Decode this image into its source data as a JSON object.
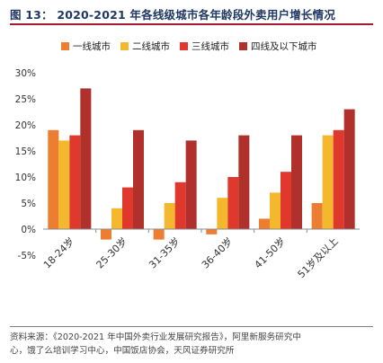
{
  "figure": {
    "label": "图 13：",
    "title": "2020-2021 年各线级城市各年龄段外卖用户增长情况"
  },
  "source": {
    "line1": "资料来源：《2020-2021 年中国外卖行业发展研究报告》，阿里新服务研究中",
    "line2": "心，饿了么培训学习中心，中国饭店协会，天风证券研究所"
  },
  "chart_data": {
    "type": "bar",
    "categories": [
      "18-24岁",
      "25-30岁",
      "31-35岁",
      "36-40岁",
      "41-50岁",
      "51岁及以上"
    ],
    "series": [
      {
        "name": "一线城市",
        "color": "#ed7d31",
        "values": [
          19,
          -2,
          -2,
          -1,
          2,
          5
        ]
      },
      {
        "name": "二线城市",
        "color": "#f4b82e",
        "values": [
          17,
          4,
          5,
          6,
          7,
          18
        ]
      },
      {
        "name": "三线城市",
        "color": "#e0382c",
        "values": [
          18,
          8,
          9,
          10,
          11,
          19
        ]
      },
      {
        "name": "四线及以下城市",
        "color": "#b0302b",
        "values": [
          27,
          19,
          17,
          18,
          18,
          23
        ]
      }
    ],
    "yticks": [
      "30%",
      "25%",
      "20%",
      "15%",
      "10%",
      "5%",
      "0%",
      "-5%"
    ],
    "ylim": [
      -5,
      30
    ],
    "legend_position": "top",
    "grid": false
  }
}
